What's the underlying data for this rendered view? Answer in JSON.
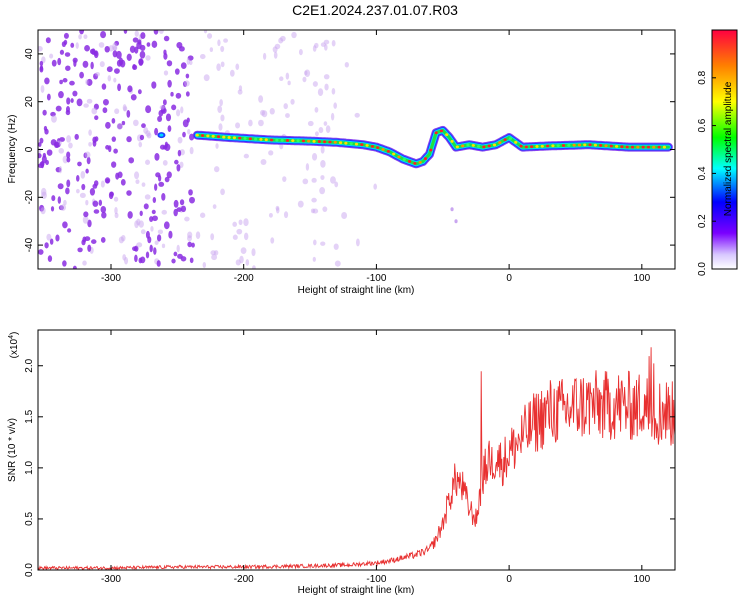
{
  "figure": {
    "title": "C2E1.2024.237.01.07.R03"
  },
  "colors": {
    "axis": "#000000",
    "snr_line": "#e83030",
    "speckle": "#8a2be2",
    "speckle_light": "#c9a6f0"
  },
  "chart_data": [
    {
      "type": "heatmap",
      "name": "spectrogram",
      "xlabel": "Height of straight line (km)",
      "ylabel": "Frequency (Hz)",
      "xlim": [
        -355,
        125
      ],
      "ylim": [
        -50,
        50
      ],
      "xticks": [
        -300,
        -200,
        -100,
        0,
        100
      ],
      "xtick_labels": [
        "-300",
        "-200",
        "-100",
        "0",
        "100"
      ],
      "yticks": [
        -40,
        -20,
        0,
        20,
        40
      ],
      "ytick_labels": [
        "-40",
        "-20",
        "0",
        "20",
        "40"
      ],
      "ridge": {
        "x": [
          -235,
          -210,
          -180,
          -150,
          -130,
          -110,
          -100,
          -90,
          -80,
          -70,
          -65,
          -60,
          -55,
          -50,
          -45,
          -40,
          -30,
          -20,
          -10,
          0,
          10,
          30,
          60,
          90,
          120
        ],
        "y": [
          6,
          5,
          4,
          3.5,
          3,
          2,
          1,
          -1,
          -4,
          -6,
          -5,
          -2,
          7,
          8,
          5,
          1,
          2,
          1,
          2,
          5,
          1,
          1.5,
          2,
          1,
          1
        ]
      },
      "colorbar": {
        "label": "Normalized spectral amplitude",
        "range": [
          0,
          1
        ],
        "ticks": [
          0.0,
          0.2,
          0.4,
          0.6,
          0.8
        ],
        "tick_labels": [
          "0.0",
          "0.2",
          "0.4",
          "0.6",
          "0.8"
        ]
      }
    },
    {
      "type": "line",
      "name": "snr",
      "xlabel": "Height of straight line (km)",
      "ylabel": "SNR (10 * v/v)",
      "scale_label": "(x10",
      "scale_exp": "4",
      "scale_close": ")",
      "xlim": [
        -355,
        125
      ],
      "ylim": [
        0,
        2.35
      ],
      "xticks": [
        -300,
        -200,
        -100,
        0,
        100
      ],
      "xtick_labels": [
        "-300",
        "-200",
        "-100",
        "0",
        "100"
      ],
      "yticks": [
        0.0,
        0.5,
        1.0,
        1.5,
        2.0
      ],
      "ytick_labels": [
        "0.0",
        "0.5",
        "1.0",
        "1.5",
        "2.0"
      ],
      "series": [
        {
          "name": "SNR",
          "x": [
            -355,
            -300,
            -250,
            -200,
            -150,
            -120,
            -100,
            -90,
            -80,
            -70,
            -60,
            -55,
            -50,
            -45,
            -40,
            -35,
            -30,
            -25,
            -20,
            -15,
            -10,
            -5,
            0,
            10,
            20,
            30,
            40,
            50,
            60,
            70,
            80,
            90,
            100,
            110,
            120,
            125
          ],
          "y": [
            0.02,
            0.02,
            0.03,
            0.03,
            0.04,
            0.05,
            0.07,
            0.09,
            0.12,
            0.15,
            0.2,
            0.3,
            0.45,
            0.7,
            0.9,
            0.8,
            0.6,
            0.5,
            0.9,
            1.1,
            1.1,
            1.05,
            1.15,
            1.3,
            1.45,
            1.55,
            1.55,
            1.6,
            1.62,
            1.6,
            1.62,
            1.6,
            1.62,
            1.55,
            1.55,
            1.5
          ]
        }
      ]
    }
  ]
}
